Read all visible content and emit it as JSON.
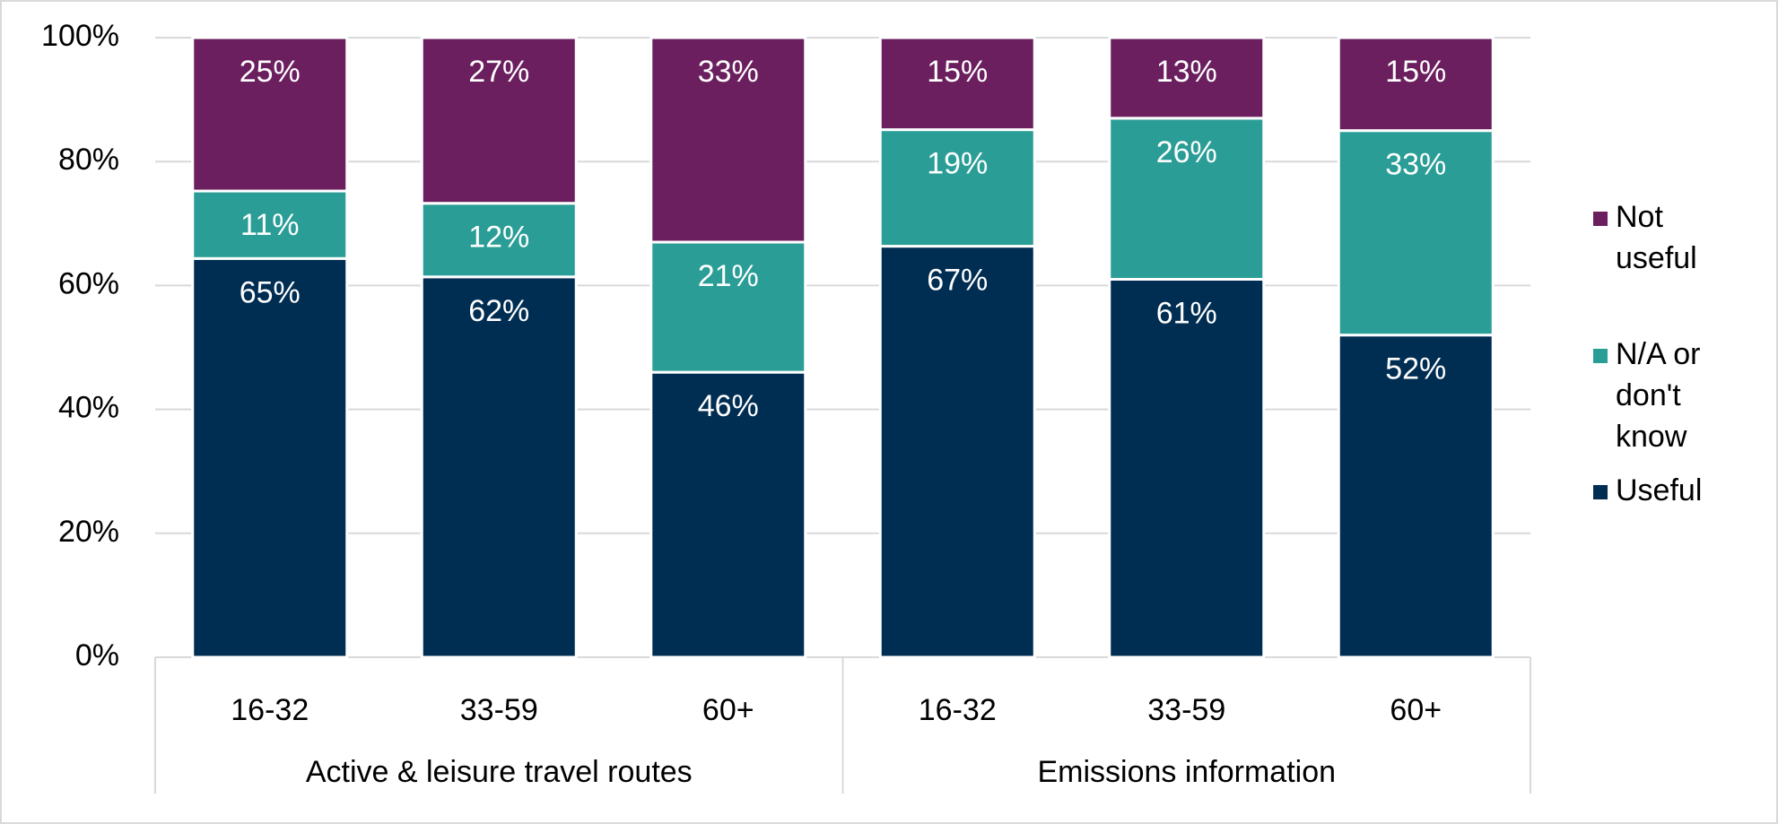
{
  "chart_data": {
    "type": "bar",
    "stacked": true,
    "percent_stacked": true,
    "title": "",
    "xlabel": "",
    "ylabel": "",
    "ylim": [
      0,
      100
    ],
    "y_ticks": [
      "0%",
      "20%",
      "40%",
      "60%",
      "80%",
      "100%"
    ],
    "grid": true,
    "legend_position": "right",
    "categories": [
      "16-32",
      "33-59",
      "60+",
      "16-32",
      "33-59",
      "60+"
    ],
    "groups": [
      {
        "label": "Active & leisure travel routes",
        "span": 3
      },
      {
        "label": "Emissions information",
        "span": 3
      }
    ],
    "series": [
      {
        "name": "Useful",
        "color": "#002D52",
        "values": [
          65,
          62,
          46,
          67,
          61,
          52
        ]
      },
      {
        "name": "N/A or don't know",
        "color": "#2A9D96",
        "values": [
          11,
          12,
          21,
          19,
          26,
          33
        ]
      },
      {
        "name": "Not useful",
        "color": "#6B1F5F",
        "values": [
          25,
          27,
          33,
          15,
          13,
          15
        ]
      }
    ],
    "legend": [
      {
        "lines": [
          "Not",
          "useful"
        ],
        "color": "#6B1F5F"
      },
      {
        "lines": [
          "N/A or",
          "don't",
          "know"
        ],
        "color": "#2A9D96"
      },
      {
        "lines": [
          "Useful"
        ],
        "color": "#002D52"
      }
    ]
  }
}
